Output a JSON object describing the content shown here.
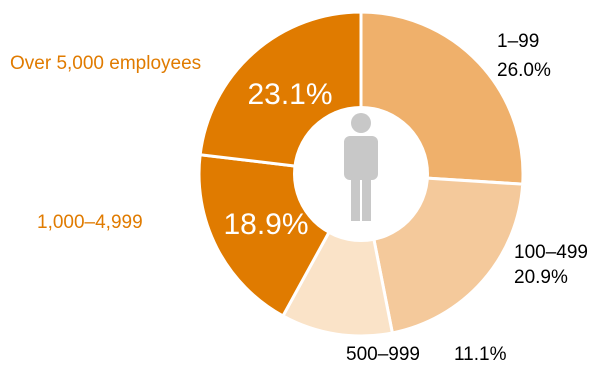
{
  "chart_data": {
    "type": "pie",
    "variant": "donut",
    "categories": [
      "1–99",
      "100–499",
      "500–999",
      "1,000–4,999",
      "Over 5,000 employees"
    ],
    "values": [
      26.0,
      20.9,
      11.1,
      18.9,
      23.1
    ],
    "value_labels": [
      "26.0%",
      "20.9%",
      "11.1%",
      "18.9%",
      "23.1%"
    ],
    "colors": [
      "#efb06b",
      "#f4c99b",
      "#fae3c8",
      "#e07b00",
      "#e07b00"
    ],
    "label_color_outside": "#e07b00",
    "label_color_default": "#000000",
    "center_icon": "person-icon",
    "title": ""
  }
}
